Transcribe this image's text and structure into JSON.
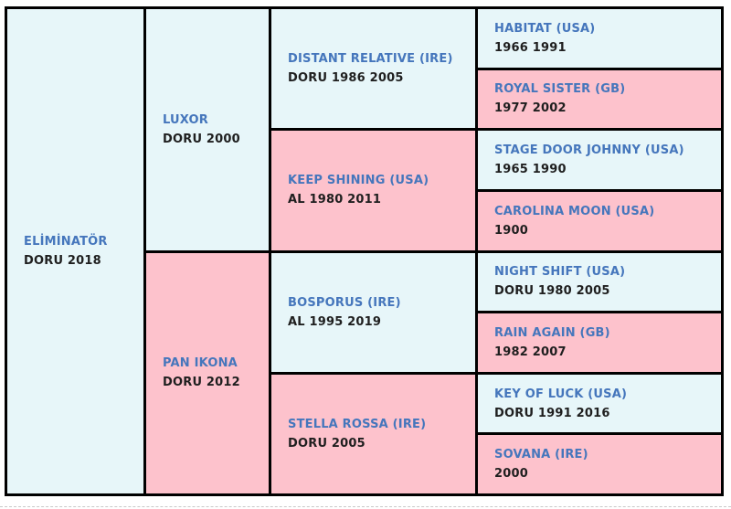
{
  "colors": {
    "sire_cell_bg": "#e7f6f9",
    "dam_cell_bg": "#fdc2cc",
    "grid_border": "#000000",
    "horse_name_text": "#4576bc",
    "horse_details_text": "#1f1f1f"
  },
  "pedigree": {
    "subject": {
      "name": "ELİMİNATÖR",
      "details": "DORU 2018"
    },
    "gen2": [
      {
        "name": "LUXOR",
        "details": "DORU 2000"
      },
      {
        "name": "PAN IKONA",
        "details": "DORU 2012"
      }
    ],
    "gen3": [
      {
        "name": "DISTANT RELATIVE (IRE)",
        "details": "DORU 1986 2005"
      },
      {
        "name": "KEEP SHINING (USA)",
        "details": "AL 1980 2011"
      },
      {
        "name": "BOSPORUS (IRE)",
        "details": "AL 1995 2019"
      },
      {
        "name": "STELLA ROSSA (IRE)",
        "details": "DORU 2005"
      }
    ],
    "gen4": [
      {
        "name": "HABITAT (USA)",
        "details": "1966 1991"
      },
      {
        "name": "ROYAL SISTER (GB)",
        "details": "1977 2002"
      },
      {
        "name": "STAGE DOOR JOHNNY (USA)",
        "details": "1965 1990"
      },
      {
        "name": "CAROLINA MOON (USA)",
        "details": "1900"
      },
      {
        "name": "NIGHT SHIFT (USA)",
        "details": "DORU 1980 2005"
      },
      {
        "name": "RAIN AGAIN (GB)",
        "details": "1982 2007"
      },
      {
        "name": "KEY OF LUCK (USA)",
        "details": "DORU 1991 2016"
      },
      {
        "name": "SOVANA (IRE)",
        "details": "2000"
      }
    ]
  }
}
